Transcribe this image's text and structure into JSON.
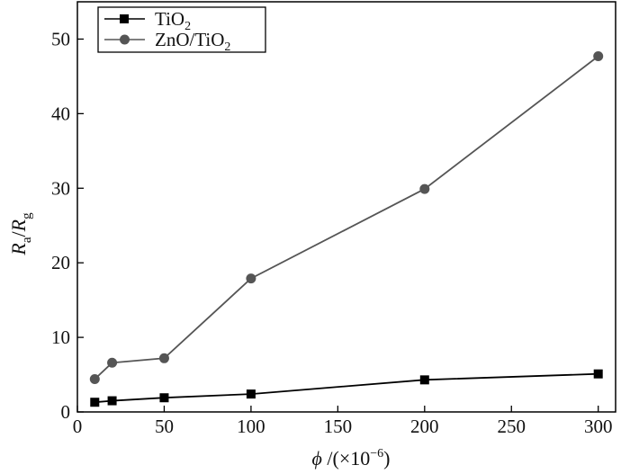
{
  "chart_data": {
    "type": "line",
    "xlabel": {
      "symbol": "ϕ",
      "text": " /(×10",
      "exp": "−6",
      "close": ")"
    },
    "ylabel": {
      "r1": "R",
      "sub1": "a",
      "slash": "/",
      "r2": "R",
      "sub2": "g"
    },
    "xlim": [
      0,
      310
    ],
    "ylim": [
      0,
      55
    ],
    "xticks": [
      0,
      50,
      100,
      150,
      200,
      250,
      300
    ],
    "yticks": [
      0,
      10,
      20,
      30,
      40,
      50
    ],
    "grid": false,
    "legend_position": "top-left",
    "series": [
      {
        "name_main": "TiO",
        "name_sub": "2",
        "marker": "square",
        "color": "#000000",
        "x": [
          10,
          20,
          50,
          100,
          200,
          300
        ],
        "y": [
          1.3,
          1.5,
          1.9,
          2.4,
          4.3,
          5.1
        ]
      },
      {
        "name_main": "ZnO/TiO",
        "name_sub": "2",
        "marker": "circle",
        "color": "#555555",
        "x": [
          10,
          20,
          50,
          100,
          200,
          300
        ],
        "y": [
          4.4,
          6.6,
          7.2,
          17.9,
          29.9,
          47.7
        ]
      }
    ]
  }
}
